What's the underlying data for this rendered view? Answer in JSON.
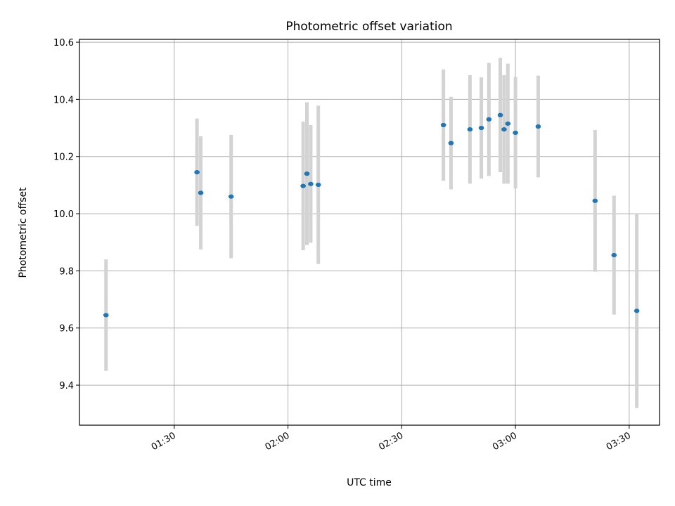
{
  "chart_data": {
    "type": "scatter",
    "title": "Photometric offset variation",
    "xlabel": "UTC time",
    "ylabel": "Photometric offset",
    "x_ticks": [
      "01:30",
      "02:00",
      "02:30",
      "03:00",
      "03:30"
    ],
    "y_ticks": [
      "9.4",
      "9.6",
      "9.8",
      "10.0",
      "10.2",
      "10.4",
      "10.6"
    ],
    "xlim": [
      "01:05",
      "03:38"
    ],
    "ylim": [
      9.26,
      10.61
    ],
    "grid": true,
    "colors": {
      "point": "#1f77b4",
      "errorbar": "#d3d3d3",
      "grid": "#b0b0b0"
    },
    "series": [
      {
        "points": [
          {
            "x": "01:12",
            "y": 9.645,
            "err": 0.195
          },
          {
            "x": "01:36",
            "y": 10.145,
            "err": 0.188
          },
          {
            "x": "01:37",
            "y": 10.073,
            "err": 0.198
          },
          {
            "x": "01:45",
            "y": 10.06,
            "err": 0.216
          },
          {
            "x": "02:04",
            "y": 10.097,
            "err": 0.225
          },
          {
            "x": "02:05",
            "y": 10.14,
            "err": 0.25
          },
          {
            "x": "02:06",
            "y": 10.104,
            "err": 0.206
          },
          {
            "x": "02:08",
            "y": 10.101,
            "err": 0.277
          },
          {
            "x": "02:41",
            "y": 10.31,
            "err": 0.195
          },
          {
            "x": "02:43",
            "y": 10.247,
            "err": 0.162
          },
          {
            "x": "02:48",
            "y": 10.295,
            "err": 0.19
          },
          {
            "x": "02:51",
            "y": 10.3,
            "err": 0.177
          },
          {
            "x": "02:53",
            "y": 10.33,
            "err": 0.198
          },
          {
            "x": "02:56",
            "y": 10.345,
            "err": 0.2
          },
          {
            "x": "02:57",
            "y": 10.295,
            "err": 0.19
          },
          {
            "x": "02:58",
            "y": 10.315,
            "err": 0.21
          },
          {
            "x": "03:00",
            "y": 10.283,
            "err": 0.195
          },
          {
            "x": "03:06",
            "y": 10.305,
            "err": 0.178
          },
          {
            "x": "03:21",
            "y": 10.045,
            "err": 0.248
          },
          {
            "x": "03:26",
            "y": 9.855,
            "err": 0.208
          },
          {
            "x": "03:32",
            "y": 9.66,
            "err": 0.34
          }
        ]
      }
    ]
  }
}
